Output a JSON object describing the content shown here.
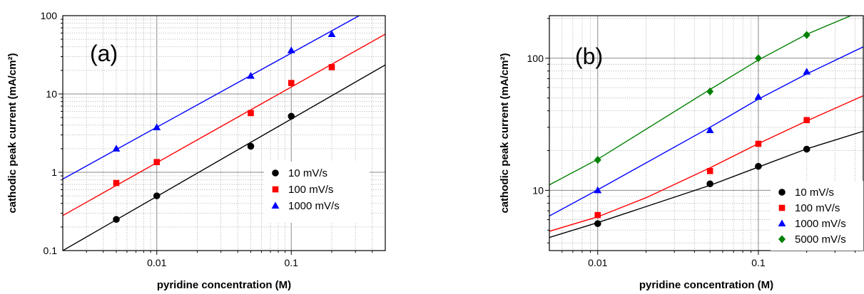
{
  "chart_data": [
    {
      "type": "scatter",
      "panel_label": "(a)",
      "xlabel": "pyridine concentration (M)",
      "ylabel": "cathodic peak current (mA/cm²)",
      "xscale": "log",
      "yscale": "log",
      "xlim": [
        0.002,
        0.5
      ],
      "ylim": [
        0.1,
        100
      ],
      "xticks": [
        {
          "v": 0.01,
          "label": "0.01"
        },
        {
          "v": 0.1,
          "label": "0.1"
        }
      ],
      "yticks": [
        {
          "v": 0.1,
          "label": "0.1"
        },
        {
          "v": 1,
          "label": "1"
        },
        {
          "v": 10,
          "label": "10"
        },
        {
          "v": 100,
          "label": "100"
        }
      ],
      "grid": true,
      "legend_position": "lower-right",
      "series": [
        {
          "name": "10 mV/s",
          "color": "#000000",
          "marker": "circle",
          "x": [
            0.005,
            0.01,
            0.05,
            0.1
          ],
          "y": [
            0.25,
            0.5,
            2.15,
            5.2
          ],
          "fit_x": [
            0.002,
            0.5
          ],
          "fit_y": [
            0.1,
            23.5
          ]
        },
        {
          "name": "100 mV/s",
          "color": "#ff0000",
          "marker": "square",
          "x": [
            0.005,
            0.01,
            0.05,
            0.1,
            0.2
          ],
          "y": [
            0.73,
            1.35,
            5.7,
            13.8,
            22
          ],
          "fit_x": [
            0.002,
            0.5
          ],
          "fit_y": [
            0.28,
            58
          ]
        },
        {
          "name": "1000 mV/s",
          "color": "#0000ff",
          "marker": "triangle",
          "x": [
            0.005,
            0.01,
            0.05,
            0.1,
            0.2
          ],
          "y": [
            2.0,
            3.75,
            17,
            36,
            58
          ],
          "fit_x": [
            0.002,
            0.32
          ],
          "fit_y": [
            0.82,
            100
          ]
        }
      ]
    },
    {
      "type": "scatter",
      "panel_label": "(b)",
      "xlabel": "pyridine concentration (M)",
      "ylabel": "cathodic peak current (mA/cm²)",
      "xscale": "log",
      "yscale": "log",
      "xlim": [
        0.005,
        0.45
      ],
      "ylim": [
        3.5,
        210
      ],
      "xticks": [
        {
          "v": 0.01,
          "label": "0.01"
        },
        {
          "v": 0.1,
          "label": "0.1"
        }
      ],
      "yticks": [
        {
          "v": 10,
          "label": "10"
        },
        {
          "v": 100,
          "label": "100"
        }
      ],
      "grid": true,
      "legend_position": "lower-right",
      "series": [
        {
          "name": "10 mV/s",
          "color": "#000000",
          "marker": "circle",
          "x": [
            0.01,
            0.05,
            0.1,
            0.2
          ],
          "y": [
            5.6,
            11.2,
            15.2,
            20.5
          ],
          "fit_x": [
            0.005,
            0.01,
            0.05,
            0.1,
            0.2,
            0.45
          ],
          "fit_y": [
            4.4,
            5.7,
            10.9,
            15.0,
            20.6,
            28
          ]
        },
        {
          "name": "100 mV/s",
          "color": "#ff0000",
          "marker": "square",
          "x": [
            0.01,
            0.05,
            0.1,
            0.2
          ],
          "y": [
            6.5,
            14,
            22.5,
            34
          ],
          "fit_x": [
            0.005,
            0.01,
            0.02,
            0.05,
            0.1,
            0.2,
            0.45
          ],
          "fit_y": [
            4.9,
            6.3,
            8.8,
            14.8,
            22.6,
            33.5,
            52
          ]
        },
        {
          "name": "1000 mV/s",
          "color": "#0000ff",
          "marker": "triangle",
          "x": [
            0.01,
            0.05,
            0.1,
            0.2
          ],
          "y": [
            10,
            28.5,
            51,
            79
          ],
          "fit_x": [
            0.005,
            0.01,
            0.05,
            0.1,
            0.2,
            0.45
          ],
          "fit_y": [
            6.4,
            10.1,
            30,
            49,
            76,
            122
          ]
        },
        {
          "name": "5000 mV/s",
          "color": "#008000",
          "marker": "diamond",
          "x": [
            0.01,
            0.05,
            0.1,
            0.2
          ],
          "y": [
            17,
            56,
            100,
            150
          ],
          "fit_x": [
            0.005,
            0.01,
            0.05,
            0.1,
            0.2,
            0.45
          ],
          "fit_y": [
            11,
            17.2,
            58,
            97,
            152,
            230
          ]
        }
      ]
    }
  ]
}
